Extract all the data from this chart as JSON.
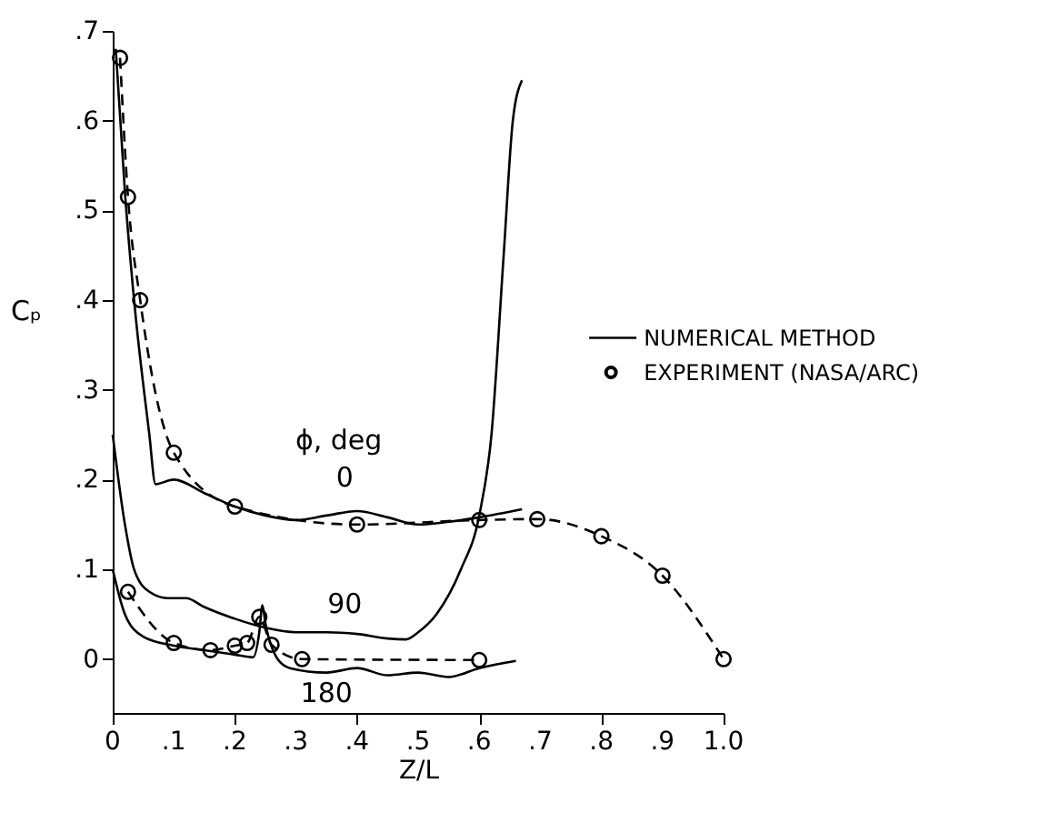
{
  "chart_data": {
    "type": "line",
    "xlabel": "Z/L",
    "ylabel": "Cₚ",
    "xlim": [
      0,
      1.0
    ],
    "ylim": [
      -0.06,
      0.7
    ],
    "xticks": [
      {
        "value": 0,
        "label": "0"
      },
      {
        "value": 0.1,
        "label": ".1"
      },
      {
        "value": 0.2,
        "label": ".2"
      },
      {
        "value": 0.3,
        "label": ".3"
      },
      {
        "value": 0.4,
        "label": ".4"
      },
      {
        "value": 0.5,
        "label": ".5"
      },
      {
        "value": 0.6,
        "label": ".6"
      },
      {
        "value": 0.7,
        "label": ".7"
      },
      {
        "value": 0.8,
        "label": ".8"
      },
      {
        "value": 0.9,
        "label": ".9"
      },
      {
        "value": 1.0,
        "label": "1.0"
      }
    ],
    "yticks": [
      {
        "value": 0,
        "label": "0"
      },
      {
        "value": 0.1,
        "label": ".1"
      },
      {
        "value": 0.2,
        "label": ".2"
      },
      {
        "value": 0.3,
        "label": ".3"
      },
      {
        "value": 0.4,
        "label": ".4"
      },
      {
        "value": 0.5,
        "label": ".5"
      },
      {
        "value": 0.6,
        "label": ".6"
      },
      {
        "value": 0.7,
        "label": ".7"
      }
    ],
    "grid": false,
    "legend": "right",
    "series": [
      {
        "name": "NUMERICAL METHOD",
        "color": "#000000",
        "line_style": "solid",
        "marker": "none",
        "x": [
          0.005,
          0.02,
          0.035,
          0.06,
          0.07,
          0.1,
          0.15,
          0.2,
          0.25,
          0.3,
          0.35,
          0.4,
          0.45,
          0.5,
          0.55,
          0.6,
          0.67
        ],
        "values": [
          0.68,
          0.52,
          0.4,
          0.25,
          0.195,
          0.2,
          0.185,
          0.17,
          0.16,
          0.155,
          0.16,
          0.165,
          0.158,
          0.15,
          0.153,
          0.158,
          0.167
        ]
      },
      {
        "color": "#000000",
        "line_style": "solid",
        "marker": "none",
        "x": [
          0.0,
          0.02,
          0.035,
          0.06,
          0.09,
          0.12,
          0.15,
          0.2,
          0.25,
          0.3,
          0.35,
          0.4,
          0.45,
          0.48,
          0.5,
          0.53,
          0.57,
          0.6,
          0.62,
          0.64,
          0.655,
          0.67
        ],
        "values": [
          0.25,
          0.15,
          0.1,
          0.075,
          0.068,
          0.068,
          0.058,
          0.045,
          0.035,
          0.03,
          0.03,
          0.028,
          0.023,
          0.022,
          0.03,
          0.05,
          0.1,
          0.16,
          0.25,
          0.45,
          0.6,
          0.645
        ]
      },
      {
        "color": "#000000",
        "line_style": "solid",
        "marker": "none",
        "x": [
          0.0,
          0.02,
          0.05,
          0.1,
          0.15,
          0.2,
          0.23,
          0.24,
          0.245,
          0.25,
          0.27,
          0.29,
          0.35,
          0.4,
          0.45,
          0.5,
          0.55,
          0.6,
          0.66
        ],
        "values": [
          0.1,
          0.05,
          0.025,
          0.015,
          0.01,
          0.005,
          0.002,
          0.03,
          0.06,
          0.04,
          0.0,
          -0.01,
          -0.015,
          -0.01,
          -0.018,
          -0.015,
          -0.02,
          -0.01,
          -0.002
        ]
      },
      {
        "name": "EXPERIMENT (NASA/ARC)",
        "color": "#000000",
        "line_style": "dashed",
        "marker": "circle",
        "x": [
          0.012,
          0.025,
          0.045,
          0.1,
          0.2,
          0.4,
          0.6,
          0.695,
          0.8,
          0.9,
          1.0
        ],
        "values": [
          0.67,
          0.515,
          0.4,
          0.23,
          0.17,
          0.15,
          0.155,
          0.156,
          0.137,
          0.093,
          0.0
        ]
      },
      {
        "color": "#000000",
        "line_style": "dashed",
        "marker": "circle",
        "x": [
          0.025,
          0.1,
          0.16,
          0.2,
          0.22,
          0.24,
          0.26,
          0.31,
          0.6
        ],
        "values": [
          0.075,
          0.018,
          0.01,
          0.015,
          0.018,
          0.047,
          0.016,
          0.0,
          -0.001
        ]
      }
    ],
    "annotations": [
      "ϕ, deg",
      "0",
      "90",
      "180"
    ]
  }
}
